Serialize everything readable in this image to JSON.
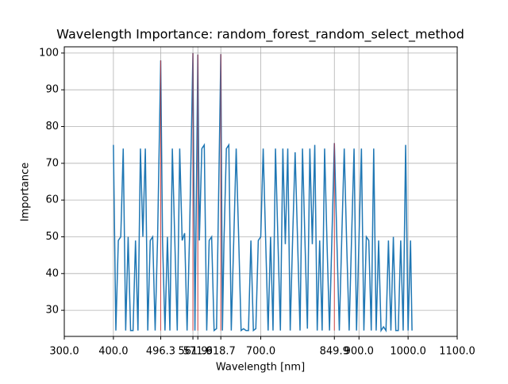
{
  "chart_data": {
    "type": "line",
    "title": "Wavelength Importance: random_forest_random_select_method",
    "x_label": "Wavelength [nm]",
    "y_label": "Importance",
    "x": [
      400,
      405,
      410,
      415,
      420,
      425,
      430,
      435,
      440,
      445,
      450,
      455,
      460,
      465,
      470,
      475,
      480,
      485,
      490,
      496.3,
      500,
      505,
      510,
      515,
      520,
      525,
      530,
      535,
      540,
      545,
      550,
      555,
      561.9,
      566,
      571.9,
      575,
      580,
      585,
      590,
      595,
      600,
      605,
      610,
      618.7,
      622,
      625,
      630,
      635,
      640,
      645,
      650,
      655,
      660,
      665,
      670,
      675,
      680,
      685,
      690,
      695,
      700,
      705,
      710,
      715,
      720,
      725,
      730,
      735,
      740,
      745,
      750,
      755,
      760,
      765,
      770,
      775,
      780,
      785,
      790,
      795,
      800,
      805,
      810,
      815,
      820,
      825,
      830,
      835,
      840,
      849.9,
      855,
      860,
      865,
      870,
      875,
      880,
      885,
      890,
      895,
      900,
      905,
      910,
      915,
      920,
      925,
      930,
      935,
      940,
      945,
      950,
      955,
      960,
      965,
      970,
      975,
      980,
      985,
      990,
      995,
      1000,
      1005,
      1008
    ],
    "series": [
      {
        "name": "Importance",
        "color": "#1f77b4",
        "values": [
          75,
          24.5,
          49,
          50,
          74,
          24.5,
          50,
          24.5,
          24.5,
          49,
          24.5,
          74,
          50,
          74,
          24.5,
          49,
          50,
          24.5,
          50,
          98,
          49,
          24.5,
          50,
          24.5,
          74,
          49,
          24.5,
          74,
          49,
          51,
          24.5,
          50,
          100,
          24.5,
          99.6,
          49,
          74,
          75,
          24.5,
          49,
          50,
          24.5,
          25,
          99.7,
          24.5,
          48,
          74,
          75,
          24.5,
          49,
          74,
          50,
          24.5,
          25,
          24.5,
          24.5,
          49,
          24.5,
          25,
          49,
          50,
          74,
          49,
          24.5,
          50,
          24.5,
          74,
          49,
          24.5,
          74,
          48,
          74,
          24.5,
          50,
          73,
          49,
          24.5,
          74,
          49,
          25,
          74,
          48,
          75,
          24.5,
          49,
          24.5,
          74,
          48,
          24.5,
          75.5,
          49,
          24.5,
          50,
          74,
          48,
          24.5,
          50,
          74,
          24.5,
          49,
          74,
          24.5,
          50,
          49,
          24.5,
          74,
          24.5,
          49,
          24.5,
          25.5,
          24.5,
          49,
          24.5,
          50,
          24.5,
          24.5,
          49,
          24.5,
          75,
          24.5,
          49,
          24.5
        ]
      }
    ],
    "highlight_color": "#d62728",
    "highlight_x": [
      496.3,
      561.9,
      571.9,
      618.7,
      849.9
    ],
    "highlight_values": [
      98,
      100,
      99.6,
      99.7,
      75.5
    ],
    "xlim": [
      300,
      1100
    ],
    "xticks": [
      {
        "value": 300,
        "label": "300.0"
      },
      {
        "value": 400,
        "label": "400.0"
      },
      496.3,
      561.9,
      571.9,
      618.7,
      {
        "value": 700,
        "label": "700.0"
      },
      849.9,
      {
        "value": 900,
        "label": "900.0"
      },
      {
        "value": 1000,
        "label": "1000.0"
      },
      {
        "value": 1100,
        "label": "1100.0"
      }
    ],
    "ylim": [
      22.9,
      101.7
    ],
    "yticks": [
      30,
      40,
      50,
      60,
      70,
      80,
      90,
      100
    ],
    "grid": true
  }
}
